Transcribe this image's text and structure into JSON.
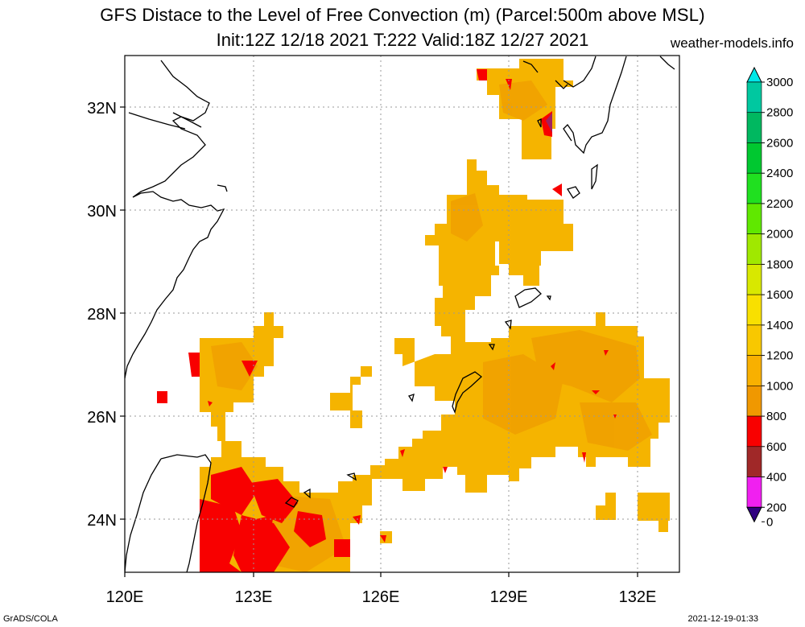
{
  "header": {
    "title_line1": "GFS Distace to the Level of Free Convection (m) (Parcel:500m above MSL)",
    "title_line2": "Init:12Z 12/18 2021 T:222 Valid:18Z 12/27 2021",
    "site": "weather-models.info"
  },
  "footer": {
    "left": "GrADS/COLA",
    "right": "2021-12-19-01:33"
  },
  "axes": {
    "lon_labels": [
      "120E",
      "123E",
      "126E",
      "129E",
      "132E"
    ],
    "lat_labels": [
      "32N",
      "30N",
      "28N",
      "26N",
      "24N"
    ]
  },
  "colorbar": {
    "labels": [
      "3000",
      "2800",
      "2600",
      "2400",
      "2200",
      "2000",
      "1800",
      "1600",
      "1400",
      "1200",
      "1000",
      "800",
      "600",
      "400",
      "200",
      "0"
    ],
    "colors": [
      "#00e8e8",
      "#00c8a0",
      "#00b860",
      "#00c830",
      "#20e020",
      "#60e800",
      "#a0e800",
      "#d8e800",
      "#f8e000",
      "#f8c800",
      "#f8b000",
      "#f09800",
      "#f80000",
      "#a02828",
      "#f020f0",
      "#300080"
    ]
  },
  "colors": {
    "orange": "#f5b400",
    "dark_orange": "#f0a000",
    "red": "#f80000",
    "purple": "#a02060"
  }
}
